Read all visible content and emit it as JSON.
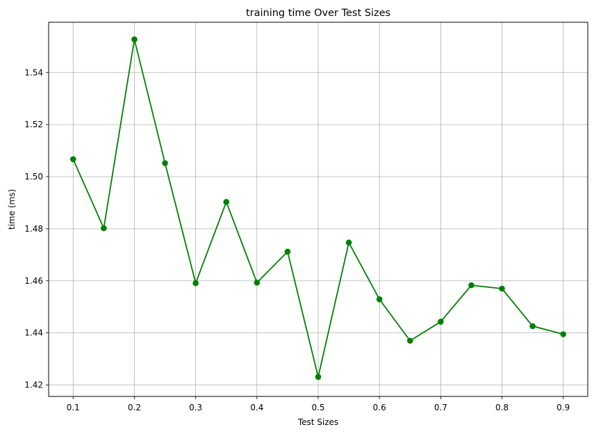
{
  "chart_data": {
    "type": "line",
    "title": "training time Over Test Sizes",
    "xlabel": "Test Sizes",
    "ylabel": "time (ms)",
    "xlim": [
      0.06,
      0.94
    ],
    "ylim": [
      1.4156,
      1.5593
    ],
    "xticks": [
      "0.1",
      "0.2",
      "0.3",
      "0.4",
      "0.5",
      "0.6",
      "0.7",
      "0.8",
      "0.9"
    ],
    "yticks": [
      "1.42",
      "1.44",
      "1.46",
      "1.48",
      "1.50",
      "1.52",
      "1.54"
    ],
    "grid": true,
    "series": [
      {
        "color": "#008000",
        "marker": "circle",
        "x": [
          0.1,
          0.15,
          0.2,
          0.25,
          0.3,
          0.35,
          0.4,
          0.45,
          0.5,
          0.55,
          0.6,
          0.65,
          0.7,
          0.75,
          0.8,
          0.85,
          0.9
        ],
        "y": [
          1.5067,
          1.4802,
          1.5527,
          1.5052,
          1.4591,
          1.4903,
          1.4593,
          1.4712,
          1.4231,
          1.4747,
          1.4529,
          1.437,
          1.4443,
          1.4583,
          1.457,
          1.4426,
          1.4395
        ]
      }
    ]
  }
}
